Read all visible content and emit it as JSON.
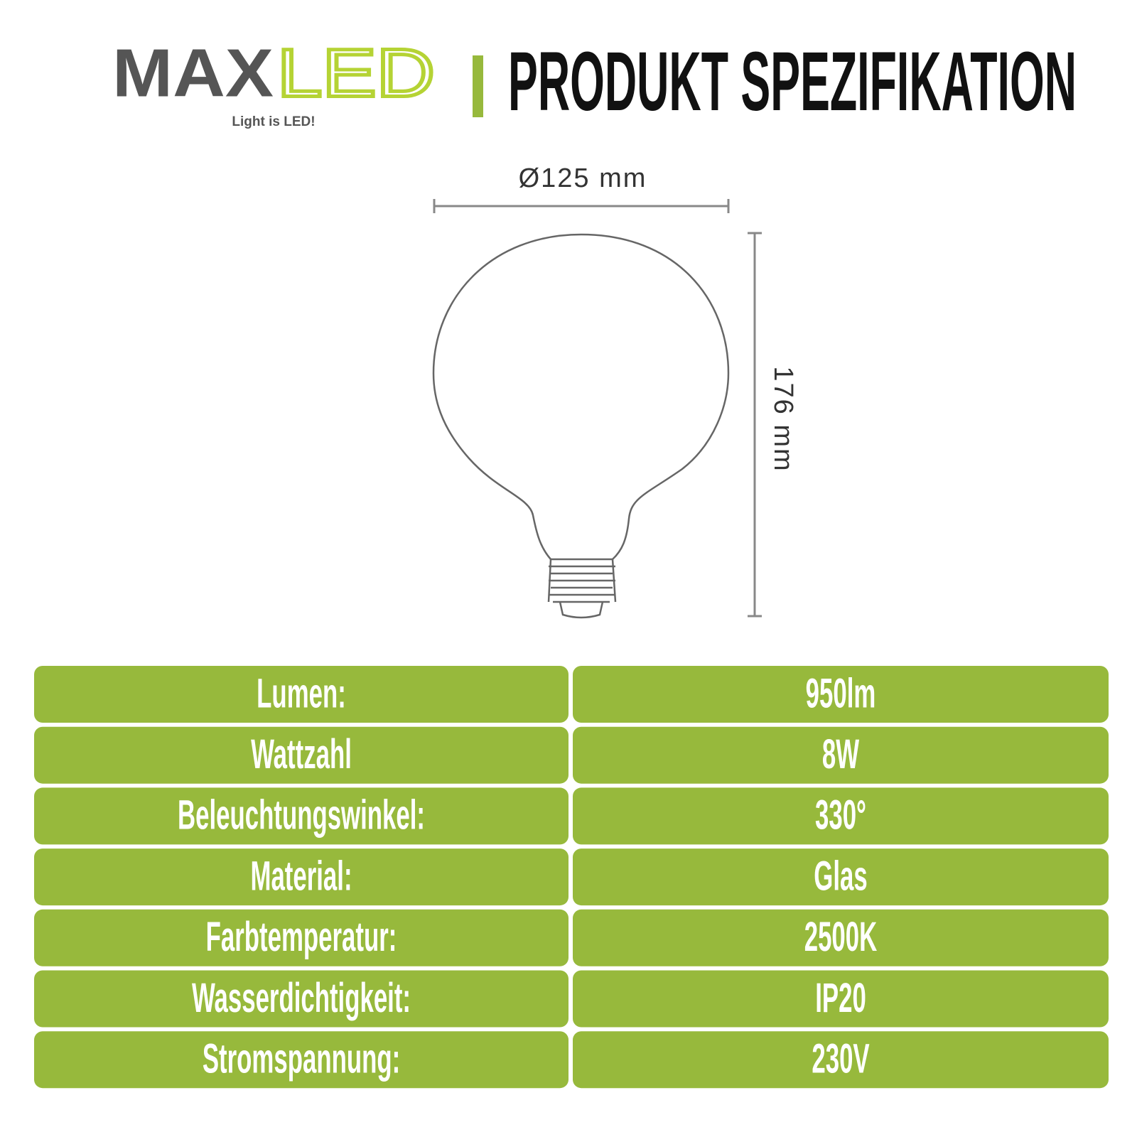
{
  "header": {
    "logo_max": "MAX",
    "logo_led": "LED",
    "tagline": "Light is LED!",
    "title": "PRODUKT SPEZIFIKATION"
  },
  "dimensions": {
    "diameter": "Ø125 mm",
    "height": "176 mm"
  },
  "table": {
    "rows": [
      [
        "Lumen:",
        "950lm"
      ],
      [
        "Wattzahl",
        "8W"
      ],
      [
        "Beleuchtungswinkel:",
        "330°"
      ],
      [
        "Material:",
        "Glas"
      ],
      [
        "Farbtemperatur:",
        "2500K"
      ],
      [
        "Wasserdichtigkeit:",
        "IP20"
      ],
      [
        "Stromspannung:",
        "230V"
      ]
    ]
  }
}
